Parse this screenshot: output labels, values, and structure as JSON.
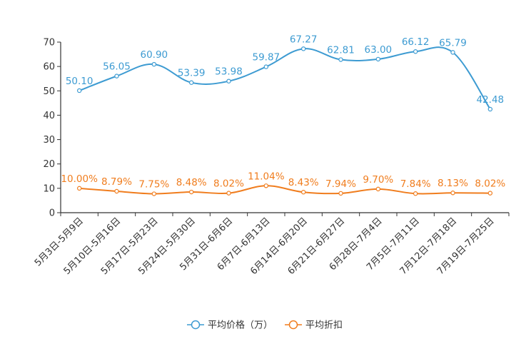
{
  "chart_data": {
    "type": "line",
    "title": "",
    "xlabel": "",
    "ylabel": "",
    "ylim": [
      0,
      70
    ],
    "yticks": [
      0,
      10,
      20,
      30,
      40,
      50,
      60,
      70
    ],
    "grid": false,
    "legend_position": "bottom-center",
    "categories": [
      "5月3日-5月9日",
      "5月10日-5月16日",
      "5月17日-5月23日",
      "5月24日-5月30日",
      "5月31日-6月6日",
      "6月7日-6月13日",
      "6月14日-6月20日",
      "6月21日-6月27日",
      "6月28日-7月4日",
      "7月5日-7月11日",
      "7月12日-7月18日",
      "7月19日-7月25日"
    ],
    "series": [
      {
        "name": "平均价格（万）",
        "color": "#3d9bd2",
        "values": [
          50.1,
          56.05,
          60.9,
          53.39,
          53.98,
          59.87,
          67.27,
          62.81,
          63.0,
          66.12,
          65.79,
          42.48
        ],
        "labels": [
          "50.10",
          "56.05",
          "60.90",
          "53.39",
          "53.98",
          "59.87",
          "67.27",
          "62.81",
          "63.00",
          "66.12",
          "65.79",
          "42.48"
        ]
      },
      {
        "name": "平均折扣",
        "color": "#f07d1e",
        "values": [
          10.0,
          8.79,
          7.75,
          8.48,
          8.02,
          11.04,
          8.43,
          7.94,
          9.7,
          7.84,
          8.13,
          8.02
        ],
        "labels": [
          "10.00%",
          "8.79%",
          "7.75%",
          "8.48%",
          "8.02%",
          "11.04%",
          "8.43%",
          "7.94%",
          "9.70%",
          "7.84%",
          "8.13%",
          "8.02%"
        ]
      }
    ]
  }
}
